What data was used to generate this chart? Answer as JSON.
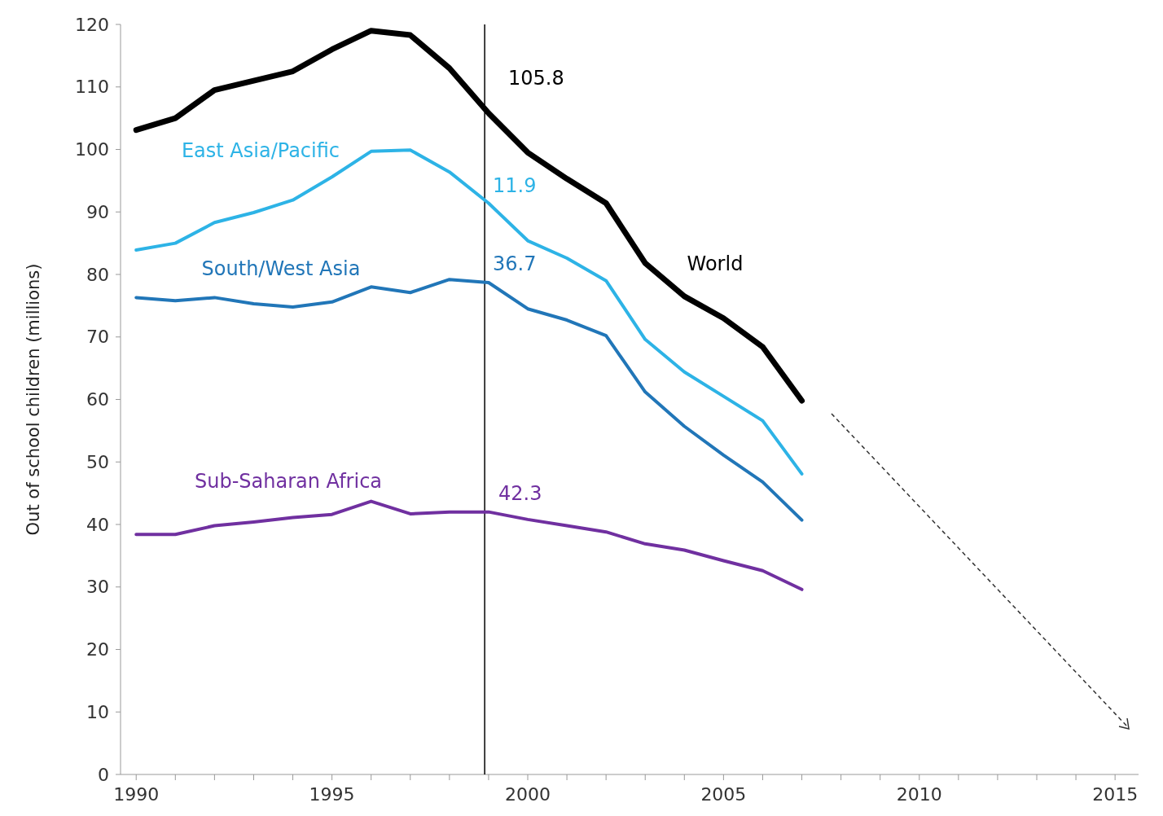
{
  "chart_data": {
    "type": "line",
    "ylabel": "Out of school children (millions)",
    "x": [
      1990,
      1991,
      1992,
      1993,
      1994,
      1995,
      1996,
      1997,
      1998,
      1999,
      2000,
      2001,
      2002,
      2003,
      2004,
      2005,
      2006,
      2007
    ],
    "series": [
      {
        "name": "World",
        "color": "#000000",
        "values": [
          103.1,
          105,
          109.5,
          111,
          112.5,
          116,
          119,
          118.3,
          113,
          105.8,
          99.5,
          95.3,
          91.4,
          81.8,
          76.5,
          73,
          68.4,
          59.8
        ]
      },
      {
        "name": "East Asia/Pacific",
        "color": "#2db3e6",
        "values": [
          83.9,
          85,
          88.3,
          89.9,
          91.9,
          95.6,
          99.7,
          99.9,
          96.4,
          91.4,
          85.4,
          82.6,
          79,
          69.6,
          64.4,
          60.5,
          56.6,
          48.1
        ]
      },
      {
        "name": "South/West Asia",
        "color": "#2176b8",
        "values": [
          76.3,
          75.8,
          76.3,
          75.3,
          74.8,
          75.6,
          78,
          77.1,
          79.2,
          78.7,
          74.5,
          72.7,
          70.2,
          61.2,
          55.7,
          51.1,
          46.8,
          40.7
        ]
      },
      {
        "name": "Sub-Saharan Africa",
        "color": "#7030a0",
        "values": [
          38.4,
          38.4,
          39.8,
          40.4,
          41.1,
          41.6,
          43.7,
          41.7,
          42,
          42,
          40.8,
          39.8,
          38.8,
          36.9,
          35.9,
          34.2,
          32.6,
          29.6
        ]
      }
    ],
    "xlim": [
      1989.6,
      2015.6
    ],
    "xticks": [
      1990,
      {
        "value": 1991,
        "label": null
      },
      {
        "value": 1992,
        "label": null
      },
      {
        "value": 1993,
        "label": null
      },
      {
        "value": 1994,
        "label": null
      },
      1995,
      {
        "value": 1996,
        "label": null
      },
      {
        "value": 1997,
        "label": null
      },
      {
        "value": 1998,
        "label": null
      },
      {
        "value": 1999,
        "label": null
      },
      2000,
      {
        "value": 2001,
        "label": null
      },
      {
        "value": 2002,
        "label": null
      },
      {
        "value": 2003,
        "label": null
      },
      {
        "value": 2004,
        "label": null
      },
      2005,
      {
        "value": 2006,
        "label": null
      },
      {
        "value": 2007,
        "label": null
      },
      {
        "value": 2008,
        "label": null
      },
      {
        "value": 2009,
        "label": null
      },
      2010,
      {
        "value": 2011,
        "label": null
      },
      {
        "value": 2012,
        "label": null
      },
      {
        "value": 2013,
        "label": null
      },
      {
        "value": 2014,
        "label": null
      },
      2015
    ],
    "ylim": [
      0,
      120
    ],
    "yticks": [
      0,
      10,
      20,
      30,
      40,
      50,
      60,
      70,
      80,
      90,
      100,
      110,
      120
    ],
    "ref_lines": [
      {
        "axis": "x",
        "value": 1998.9,
        "color": "#000000"
      }
    ],
    "annotations": [
      "105.8",
      "11.9",
      "36.7",
      "42.3"
    ],
    "grid": false,
    "legend": false,
    "marker": "none",
    "line_style": "solid"
  }
}
